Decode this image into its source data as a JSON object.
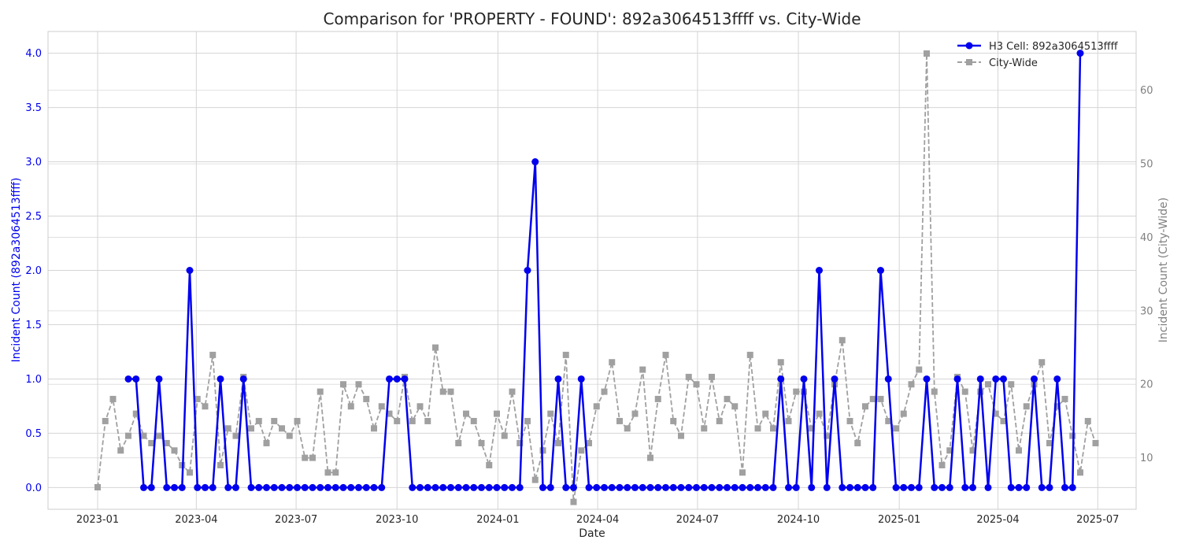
{
  "chart_data": {
    "type": "line",
    "title": "Comparison for 'PROPERTY - FOUND': 892a3064513ffff vs. City-Wide",
    "xlabel": "Date",
    "ylabel_left": "Incident Count (892a3064513ffff)",
    "ylabel_right": "Incident Count (City-Wide)",
    "ylim_left": [
      -0.2,
      4.2
    ],
    "ylim_right": [
      3,
      68
    ],
    "yticks_left": [
      "0.0",
      "0.5",
      "1.0",
      "1.5",
      "2.0",
      "2.5",
      "3.0",
      "3.5",
      "4.0"
    ],
    "yticks_right": [
      "10",
      "20",
      "30",
      "40",
      "50",
      "60"
    ],
    "xticks": [
      "2023-01",
      "2023-04",
      "2023-07",
      "2023-10",
      "2024-01",
      "2024-04",
      "2024-07",
      "2024-10",
      "2025-01",
      "2025-04",
      "2025-07"
    ],
    "grid": true,
    "legend_position": "top-right",
    "x_start": "2023-01-01",
    "x_step_days": 7,
    "colors": {
      "left_series": "#0000ee",
      "right_series": "#a0a0a0",
      "left_axis": "#0000ee",
      "right_axis": "#808080"
    },
    "series": [
      {
        "name": "H3 Cell: 892a3064513ffff",
        "axis": "left",
        "values": [
          null,
          null,
          null,
          null,
          1,
          1,
          0,
          0,
          1,
          0,
          0,
          0,
          2,
          0,
          0,
          0,
          1,
          0,
          0,
          1,
          0,
          0,
          0,
          0,
          0,
          0,
          0,
          0,
          0,
          0,
          0,
          0,
          0,
          0,
          0,
          0,
          0,
          0,
          1,
          1,
          1,
          0,
          0,
          0,
          0,
          0,
          0,
          0,
          0,
          0,
          0,
          0,
          0,
          0,
          0,
          0,
          2,
          3,
          0,
          0,
          1,
          0,
          0,
          1,
          0,
          0,
          0,
          0,
          0,
          0,
          0,
          0,
          0,
          0,
          0,
          0,
          0,
          0,
          0,
          0,
          0,
          0,
          0,
          0,
          0,
          0,
          0,
          0,
          0,
          1,
          0,
          0,
          1,
          0,
          2,
          0,
          1,
          0,
          0,
          0,
          0,
          0,
          2,
          1,
          0,
          0,
          0,
          0,
          1,
          0,
          0,
          0,
          1,
          0,
          0,
          1,
          0,
          1,
          1,
          0,
          0,
          0,
          1,
          0,
          0,
          1,
          0,
          0,
          4
        ]
      },
      {
        "name": "City-Wide",
        "axis": "right",
        "values": [
          6,
          15,
          18,
          11,
          13,
          16,
          13,
          12,
          13,
          12,
          11,
          9,
          8,
          18,
          17,
          24,
          9,
          14,
          13,
          21,
          14,
          15,
          12,
          15,
          14,
          13,
          15,
          10,
          10,
          19,
          8,
          8,
          20,
          17,
          20,
          18,
          14,
          17,
          16,
          15,
          21,
          15,
          17,
          15,
          25,
          19,
          19,
          12,
          16,
          15,
          12,
          9,
          16,
          13,
          19,
          12,
          15,
          7,
          11,
          16,
          12,
          24,
          4,
          11,
          12,
          17,
          19,
          23,
          15,
          14,
          16,
          22,
          10,
          18,
          24,
          15,
          13,
          21,
          20,
          14,
          21,
          15,
          18,
          17,
          8,
          24,
          14,
          16,
          14,
          23,
          15,
          19,
          19,
          14,
          16,
          13,
          20,
          26,
          15,
          12,
          17,
          18,
          18,
          15,
          14,
          16,
          20,
          22,
          65,
          19,
          9,
          11,
          21,
          19,
          11,
          19,
          20,
          16,
          15,
          20,
          11,
          17,
          20,
          23,
          12,
          17,
          18,
          13,
          8,
          15,
          12
        ]
      }
    ]
  }
}
